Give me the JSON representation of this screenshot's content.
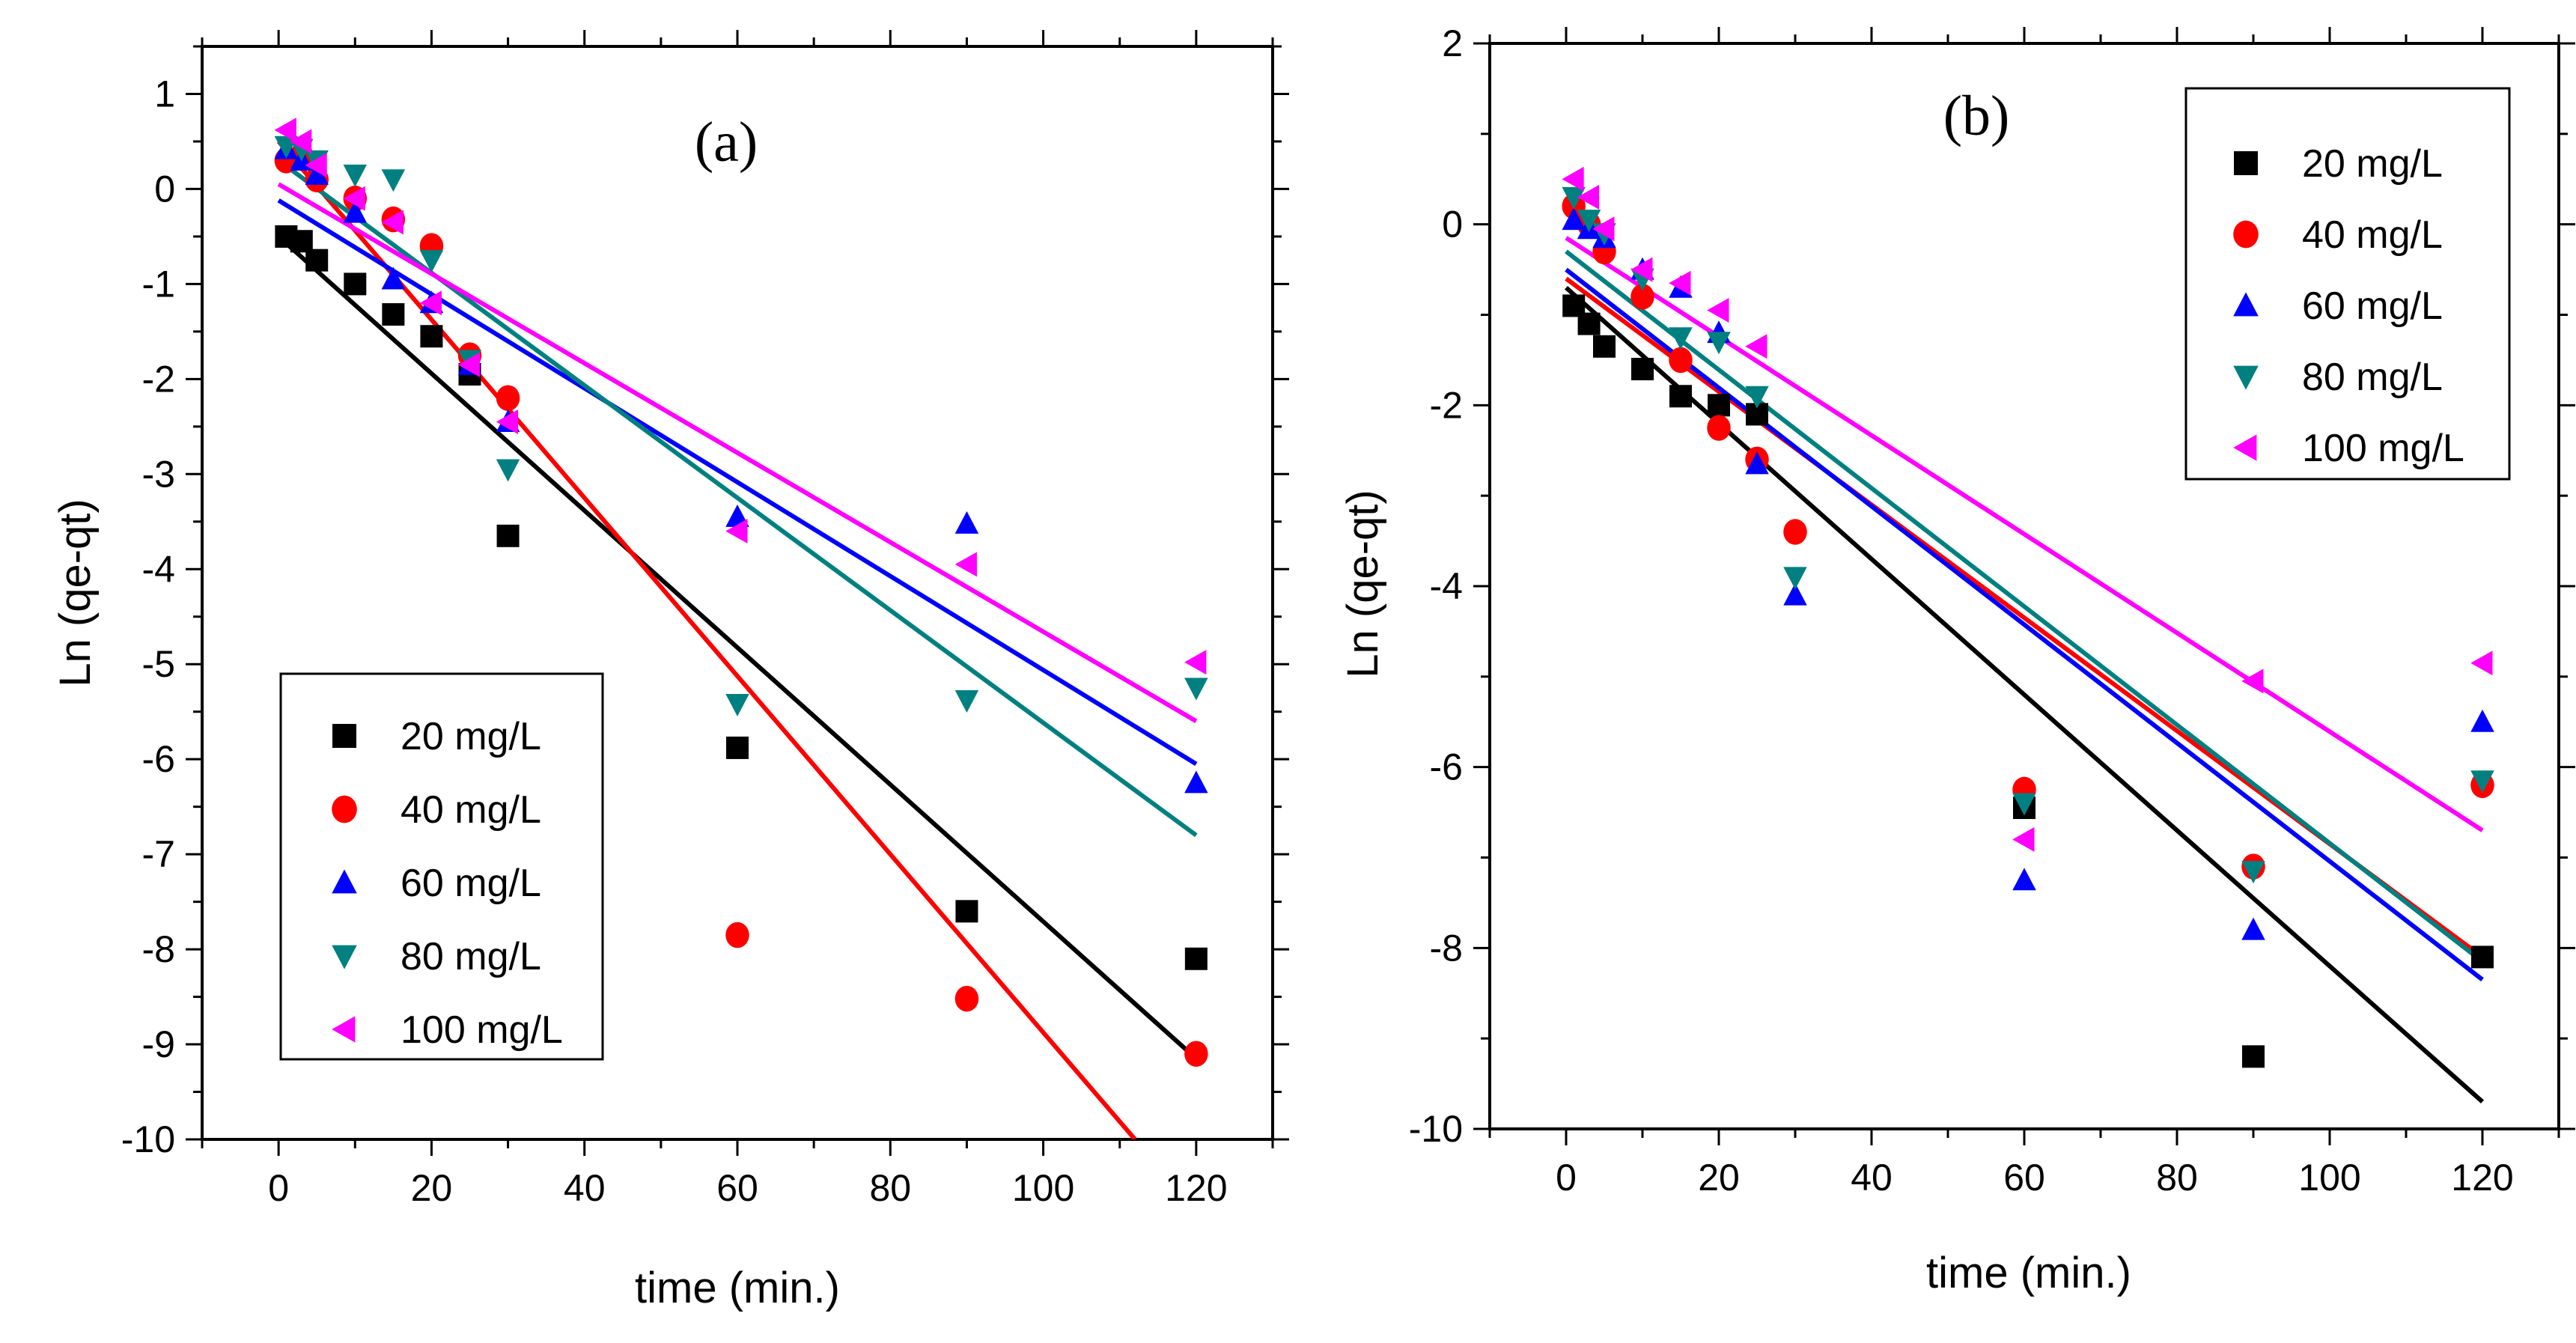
{
  "chart_data": [
    {
      "type": "scatter",
      "panel_label": "(a)",
      "xlabel": "time (min.)",
      "ylabel": "Ln (qe-qt)",
      "xlim": [
        -10,
        130
      ],
      "ylim": [
        -10,
        1.5
      ],
      "xticks": [
        "0",
        "20",
        "40",
        "60",
        "80",
        "100",
        "120"
      ],
      "yticks": [
        "1",
        "0",
        "-1",
        "-2",
        "-3",
        "-4",
        "-5",
        "-6",
        "-7",
        "-8",
        "-9",
        "-10"
      ],
      "legend_position": "bottom-left",
      "series": [
        {
          "name": "20 mg/L",
          "color": "#000000",
          "marker": "square",
          "x": [
            1,
            3,
            5,
            10,
            15,
            20,
            25,
            30,
            60,
            90,
            120
          ],
          "y": [
            -0.5,
            -0.55,
            -0.75,
            -1.0,
            -1.32,
            -1.55,
            -1.95,
            -3.65,
            -5.88,
            -7.6,
            -8.1
          ],
          "fit": [
            [
              0,
              -0.5
            ],
            [
              120,
              -9.15
            ]
          ]
        },
        {
          "name": "40 mg/L",
          "color": "#ff0000",
          "marker": "circle",
          "x": [
            1,
            3,
            5,
            10,
            15,
            20,
            25,
            30,
            60,
            90,
            120
          ],
          "y": [
            0.3,
            0.35,
            0.1,
            -0.1,
            -0.32,
            -0.6,
            -1.75,
            -2.2,
            -7.85,
            -8.52,
            -9.1
          ],
          "fit": [
            [
              0,
              0.5
            ],
            [
              112,
              -10.0
            ]
          ]
        },
        {
          "name": "60 mg/L",
          "color": "#0000ff",
          "marker": "triangle-up",
          "x": [
            1,
            3,
            5,
            10,
            15,
            20,
            25,
            30,
            60,
            90,
            120
          ],
          "y": [
            0.42,
            0.3,
            0.15,
            -0.25,
            -0.95,
            -1.2,
            -1.85,
            -2.45,
            -3.45,
            -3.52,
            -6.25
          ],
          "fit": [
            [
              0,
              -0.12
            ],
            [
              120,
              -6.05
            ]
          ]
        },
        {
          "name": "80 mg/L",
          "color": "#008080",
          "marker": "triangle-down",
          "x": [
            1,
            3,
            5,
            10,
            15,
            20,
            25,
            30,
            60,
            90,
            120
          ],
          "y": [
            0.45,
            0.42,
            0.3,
            0.15,
            0.1,
            -0.75,
            -1.8,
            -2.95,
            -5.42,
            -5.38,
            -5.25
          ],
          "fit": [
            [
              0,
              0.3
            ],
            [
              120,
              -6.8
            ]
          ]
        },
        {
          "name": "100 mg/L",
          "color": "#ff00ff",
          "marker": "triangle-left",
          "x": [
            1,
            3,
            5,
            10,
            15,
            20,
            25,
            30,
            60,
            90,
            120
          ],
          "y": [
            0.62,
            0.5,
            0.25,
            -0.1,
            -0.35,
            -1.2,
            -1.85,
            -2.45,
            -3.6,
            -3.95,
            -4.98
          ],
          "fit": [
            [
              0,
              0.05
            ],
            [
              120,
              -5.6
            ]
          ]
        }
      ]
    },
    {
      "type": "scatter",
      "panel_label": "(b)",
      "xlabel": "time (min.)",
      "ylabel": "Ln (qe-qt)",
      "xlim": [
        -10,
        130
      ],
      "ylim": [
        -10,
        2
      ],
      "xticks": [
        "0",
        "20",
        "40",
        "60",
        "80",
        "100",
        "120"
      ],
      "yticks": [
        "2",
        "0",
        "-2",
        "-4",
        "-6",
        "-8",
        "-10"
      ],
      "legend_position": "top-right",
      "series": [
        {
          "name": "20 mg/L",
          "color": "#000000",
          "marker": "square",
          "x": [
            1,
            3,
            5,
            10,
            15,
            20,
            25,
            60,
            90,
            120
          ],
          "y": [
            -0.9,
            -1.1,
            -1.35,
            -1.6,
            -1.9,
            -2.0,
            -2.1,
            -6.45,
            -9.2,
            -8.1
          ],
          "fit": [
            [
              0,
              -0.7
            ],
            [
              120,
              -9.7
            ]
          ]
        },
        {
          "name": "40 mg/L",
          "color": "#ff0000",
          "marker": "circle",
          "x": [
            1,
            3,
            5,
            10,
            15,
            20,
            25,
            30,
            60,
            90,
            120
          ],
          "y": [
            0.2,
            0.0,
            -0.3,
            -0.8,
            -1.5,
            -2.25,
            -2.6,
            -3.4,
            -6.25,
            -7.1,
            -6.2
          ],
          "fit": [
            [
              0,
              -0.6
            ],
            [
              120,
              -8.1
            ]
          ]
        },
        {
          "name": "60 mg/L",
          "color": "#0000ff",
          "marker": "triangle-up",
          "x": [
            1,
            3,
            5,
            10,
            15,
            20,
            25,
            30,
            60,
            90,
            120
          ],
          "y": [
            0.05,
            -0.05,
            -0.15,
            -0.5,
            -0.7,
            -1.2,
            -2.65,
            -4.1,
            -7.25,
            -7.8,
            -5.5
          ],
          "fit": [
            [
              0,
              -0.5
            ],
            [
              120,
              -8.35
            ]
          ]
        },
        {
          "name": "80 mg/L",
          "color": "#008080",
          "marker": "triangle-down",
          "x": [
            1,
            3,
            5,
            10,
            15,
            20,
            25,
            30,
            60,
            90,
            120
          ],
          "y": [
            0.3,
            0.05,
            -0.1,
            -0.6,
            -1.25,
            -1.3,
            -1.9,
            -3.9,
            -6.4,
            -7.15,
            -6.15
          ],
          "fit": [
            [
              0,
              -0.3
            ],
            [
              120,
              -8.15
            ]
          ]
        },
        {
          "name": "100 mg/L",
          "color": "#ff00ff",
          "marker": "triangle-left",
          "x": [
            1,
            3,
            5,
            10,
            15,
            20,
            25,
            60,
            90,
            120
          ],
          "y": [
            0.5,
            0.3,
            -0.05,
            -0.5,
            -0.65,
            -0.95,
            -1.35,
            -6.8,
            -5.05,
            -4.85
          ],
          "fit": [
            [
              0,
              -0.15
            ],
            [
              120,
              -6.7
            ]
          ]
        }
      ]
    }
  ]
}
